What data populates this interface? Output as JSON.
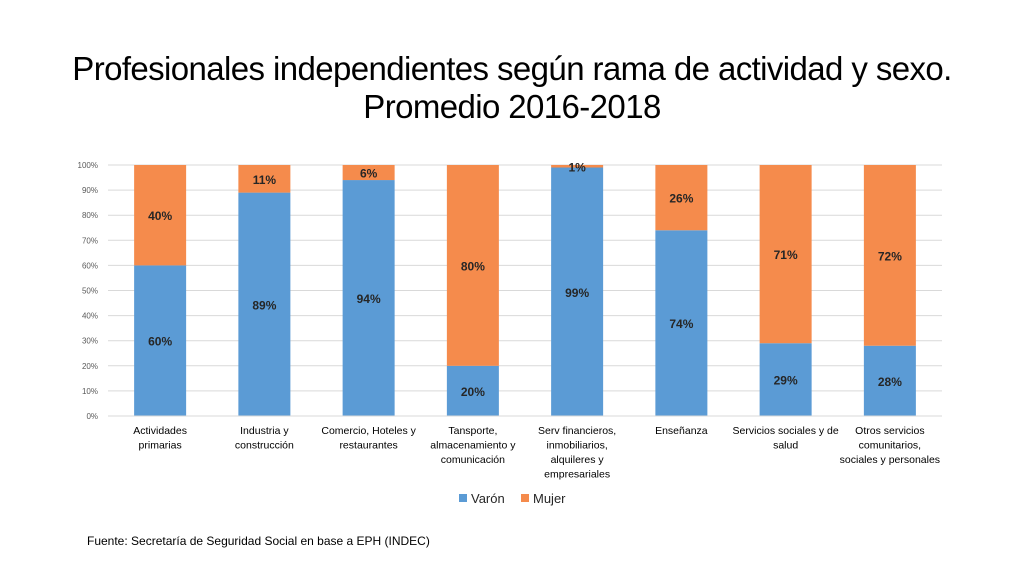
{
  "slide": {
    "title_line1": "Profesionales independientes según rama de actividad y sexo.",
    "title_line2": "Promedio 2016-2018",
    "source": "Fuente: Secretaría de Seguridad Social en base a EPH (INDEC)"
  },
  "colors": {
    "varon": "#5b9bd5",
    "mujer": "#f58b4c",
    "grid": "#d9d9d9",
    "axis_text": "#595959"
  },
  "chart_data": {
    "type": "bar",
    "stacked": true,
    "percent_stacked": true,
    "categories": [
      [
        "Actividades",
        "primarias"
      ],
      [
        "Industria y",
        "construcción"
      ],
      [
        "Comercio, Hoteles y",
        "restaurantes"
      ],
      [
        "Tansporte,",
        "almacenamiento y",
        "comunicación"
      ],
      [
        "Serv financieros,",
        "inmobiliarios,",
        "alquileres y",
        "empresariales"
      ],
      [
        "Enseñanza"
      ],
      [
        "Servicios sociales y de",
        "salud"
      ],
      [
        "Otros servicios",
        "comunitarios,",
        "sociales y personales"
      ]
    ],
    "series": [
      {
        "name": "Varón",
        "values": [
          60,
          89,
          94,
          20,
          99,
          74,
          29,
          28
        ],
        "labels": [
          "60%",
          "89%",
          "94%",
          "20%",
          "99%",
          "74%",
          "29%",
          "28%"
        ]
      },
      {
        "name": "Mujer",
        "values": [
          40,
          11,
          6,
          80,
          1,
          26,
          71,
          72
        ],
        "labels": [
          "40%",
          "11%",
          "6%",
          "80%",
          "1%",
          "26%",
          "71%",
          "72%"
        ]
      }
    ],
    "y_ticks": [
      "0%",
      "10%",
      "20%",
      "30%",
      "40%",
      "50%",
      "60%",
      "70%",
      "80%",
      "90%",
      "100%"
    ],
    "ylim": [
      0,
      100
    ],
    "grid": true,
    "legend_position": "bottom"
  }
}
